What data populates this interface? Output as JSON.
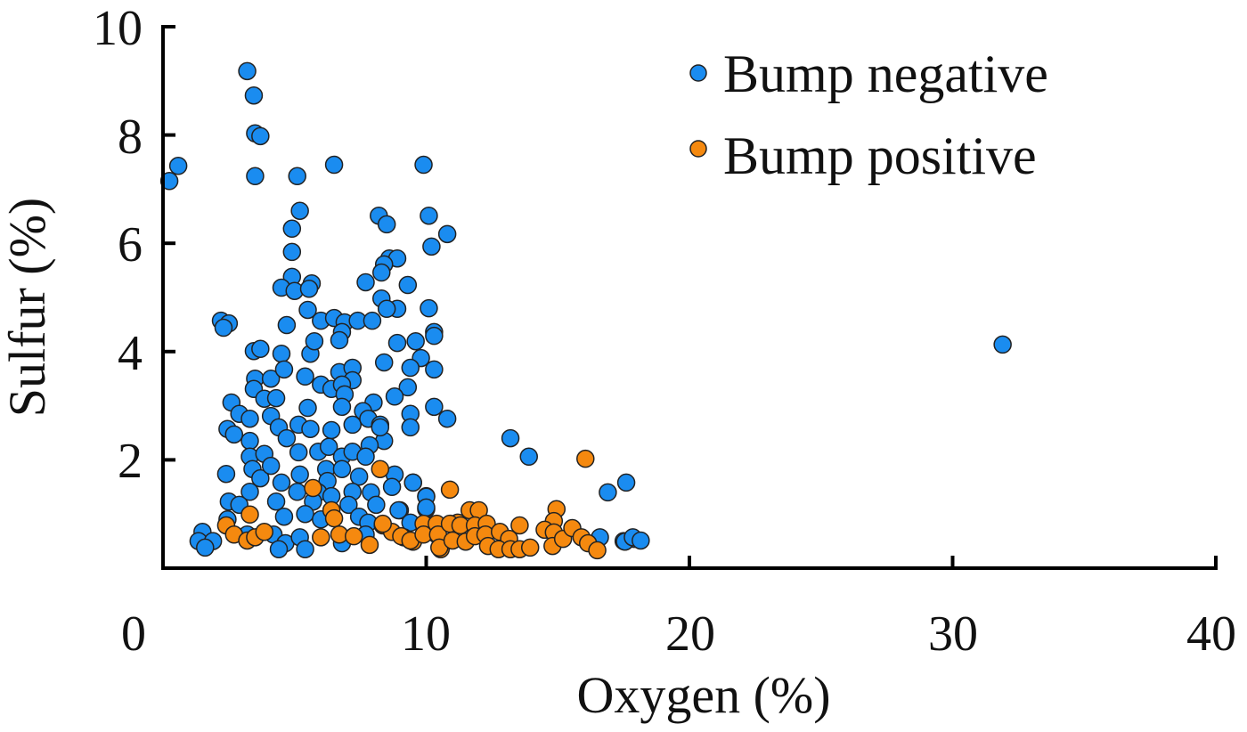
{
  "chart_data": {
    "type": "scatter",
    "xlabel": "Oxygen (%)",
    "ylabel": "Sulfur (%)",
    "xlim": [
      0,
      40
    ],
    "ylim": [
      0,
      10
    ],
    "xticks": [
      "0",
      "10",
      "20",
      "30",
      "40"
    ],
    "yticks": [
      "2",
      "4",
      "6",
      "8",
      "10"
    ],
    "grid": false,
    "legend_position": "top-right",
    "series": [
      {
        "name": "Bump negative",
        "color": "#1a8cf0",
        "points": [
          [
            0.24,
            7.15
          ],
          [
            0.58,
            7.43
          ],
          [
            3.2,
            9.18
          ],
          [
            3.45,
            8.73
          ],
          [
            3.5,
            8.03
          ],
          [
            3.7,
            7.98
          ],
          [
            3.5,
            7.24
          ],
          [
            5.1,
            7.24
          ],
          [
            6.5,
            7.45
          ],
          [
            9.9,
            7.45
          ],
          [
            5.2,
            6.6
          ],
          [
            4.9,
            6.27
          ],
          [
            4.9,
            5.84
          ],
          [
            8.2,
            6.51
          ],
          [
            8.5,
            6.35
          ],
          [
            10.1,
            6.51
          ],
          [
            10.8,
            6.17
          ],
          [
            10.2,
            5.94
          ],
          [
            31.9,
            4.13
          ],
          [
            13.2,
            2.4
          ],
          [
            13.9,
            2.06
          ],
          [
            16.9,
            1.4
          ],
          [
            17.6,
            1.58
          ],
          [
            17.5,
            0.5
          ],
          [
            17.9,
            0.54
          ],
          [
            8.6,
            5.72
          ],
          [
            8.9,
            5.72
          ],
          [
            8.4,
            5.61
          ],
          [
            8.3,
            5.46
          ],
          [
            7.7,
            5.28
          ],
          [
            9.3,
            5.23
          ],
          [
            4.9,
            5.38
          ],
          [
            4.5,
            5.18
          ],
          [
            5.0,
            5.12
          ],
          [
            5.65,
            5.26
          ],
          [
            5.55,
            5.16
          ],
          [
            5.5,
            4.77
          ],
          [
            6.0,
            4.57
          ],
          [
            6.5,
            4.62
          ],
          [
            6.9,
            4.54
          ],
          [
            7.4,
            4.57
          ],
          [
            7.95,
            4.57
          ],
          [
            8.3,
            4.98
          ],
          [
            8.9,
            4.79
          ],
          [
            8.5,
            4.79
          ],
          [
            10.1,
            4.8
          ],
          [
            2.2,
            4.57
          ],
          [
            2.5,
            4.52
          ],
          [
            2.3,
            4.44
          ],
          [
            4.7,
            4.49
          ],
          [
            10.3,
            4.36
          ],
          [
            6.8,
            4.36
          ],
          [
            3.45,
            4.01
          ],
          [
            3.7,
            4.05
          ],
          [
            4.5,
            3.96
          ],
          [
            5.6,
            3.96
          ],
          [
            5.75,
            4.19
          ],
          [
            6.7,
            4.21
          ],
          [
            8.4,
            3.8
          ],
          [
            8.9,
            4.16
          ],
          [
            9.6,
            4.19
          ],
          [
            10.3,
            4.29
          ],
          [
            9.8,
            3.88
          ],
          [
            9.4,
            3.7
          ],
          [
            10.3,
            3.67
          ],
          [
            3.5,
            3.5
          ],
          [
            4.1,
            3.5
          ],
          [
            4.6,
            3.67
          ],
          [
            3.45,
            3.31
          ],
          [
            5.4,
            3.54
          ],
          [
            6.0,
            3.39
          ],
          [
            6.4,
            3.31
          ],
          [
            6.7,
            3.62
          ],
          [
            7.2,
            3.7
          ],
          [
            7.2,
            3.47
          ],
          [
            6.8,
            3.39
          ],
          [
            9.3,
            3.34
          ],
          [
            8.8,
            3.17
          ],
          [
            2.6,
            3.06
          ],
          [
            2.9,
            2.85
          ],
          [
            3.3,
            2.76
          ],
          [
            3.85,
            3.13
          ],
          [
            4.3,
            3.14
          ],
          [
            4.1,
            2.81
          ],
          [
            5.5,
            2.96
          ],
          [
            6.9,
            3.21
          ],
          [
            6.8,
            2.98
          ],
          [
            8.0,
            3.06
          ],
          [
            7.6,
            2.9
          ],
          [
            9.4,
            2.85
          ],
          [
            9.4,
            2.6
          ],
          [
            10.3,
            2.98
          ],
          [
            10.8,
            2.76
          ],
          [
            2.45,
            2.57
          ],
          [
            2.7,
            2.47
          ],
          [
            3.3,
            2.35
          ],
          [
            4.4,
            2.6
          ],
          [
            4.7,
            2.4
          ],
          [
            5.15,
            2.65
          ],
          [
            5.6,
            2.57
          ],
          [
            6.4,
            2.55
          ],
          [
            7.2,
            2.65
          ],
          [
            7.8,
            2.76
          ],
          [
            8.25,
            2.65
          ],
          [
            8.4,
            2.35
          ],
          [
            7.85,
            2.27
          ],
          [
            8.25,
            2.6
          ],
          [
            3.3,
            2.06
          ],
          [
            3.85,
            2.11
          ],
          [
            5.15,
            2.14
          ],
          [
            5.9,
            2.15
          ],
          [
            6.3,
            2.24
          ],
          [
            6.8,
            2.06
          ],
          [
            7.2,
            2.15
          ],
          [
            7.7,
            2.06
          ],
          [
            2.4,
            1.74
          ],
          [
            3.4,
            1.83
          ],
          [
            3.7,
            1.66
          ],
          [
            4.1,
            1.89
          ],
          [
            4.5,
            1.58
          ],
          [
            5.2,
            1.73
          ],
          [
            6.2,
            1.83
          ],
          [
            6.25,
            1.61
          ],
          [
            6.8,
            1.83
          ],
          [
            7.45,
            1.69
          ],
          [
            8.8,
            1.73
          ],
          [
            9.5,
            1.58
          ],
          [
            8.7,
            1.5
          ],
          [
            3.3,
            1.41
          ],
          [
            5.1,
            1.41
          ],
          [
            5.9,
            1.4
          ],
          [
            6.4,
            1.33
          ],
          [
            7.2,
            1.41
          ],
          [
            7.9,
            1.4
          ],
          [
            10.0,
            1.33
          ],
          [
            2.5,
            1.23
          ],
          [
            2.9,
            1.17
          ],
          [
            4.3,
            1.23
          ],
          [
            5.7,
            1.23
          ],
          [
            7.05,
            1.17
          ],
          [
            8.1,
            1.17
          ],
          [
            9.0,
            1.07
          ],
          [
            10.0,
            1.09
          ],
          [
            10.0,
            1.32
          ],
          [
            10.0,
            1.12
          ],
          [
            8.95,
            1.07
          ],
          [
            9.5,
            1.58
          ],
          [
            2.45,
            0.9
          ],
          [
            4.6,
            0.95
          ],
          [
            5.4,
            1.0
          ],
          [
            6.0,
            0.9
          ],
          [
            7.45,
            0.95
          ],
          [
            7.8,
            0.84
          ],
          [
            9.4,
            0.84
          ],
          [
            1.5,
            0.67
          ],
          [
            1.35,
            0.5
          ],
          [
            1.9,
            0.5
          ],
          [
            1.6,
            0.38
          ],
          [
            3.2,
            0.62
          ],
          [
            4.2,
            0.62
          ],
          [
            4.65,
            0.46
          ],
          [
            4.4,
            0.35
          ],
          [
            5.2,
            0.57
          ],
          [
            5.4,
            0.35
          ],
          [
            7.7,
            0.62
          ],
          [
            6.8,
            0.46
          ],
          [
            16.6,
            0.57
          ],
          [
            17.55,
            0.49
          ],
          [
            17.85,
            0.57
          ],
          [
            18.15,
            0.51
          ]
        ]
      },
      {
        "name": "Bump positive",
        "color": "#f5890f",
        "points": [
          [
            16.05,
            2.02
          ],
          [
            8.25,
            1.83
          ],
          [
            5.7,
            1.48
          ],
          [
            10.9,
            1.45
          ],
          [
            3.3,
            0.99
          ],
          [
            6.4,
            1.07
          ],
          [
            6.5,
            0.92
          ],
          [
            2.4,
            0.79
          ],
          [
            2.7,
            0.62
          ],
          [
            3.2,
            0.51
          ],
          [
            3.5,
            0.57
          ],
          [
            3.85,
            0.67
          ],
          [
            6.0,
            0.57
          ],
          [
            6.7,
            0.62
          ],
          [
            7.25,
            0.59
          ],
          [
            7.85,
            0.43
          ],
          [
            8.35,
            0.79
          ],
          [
            8.7,
            0.67
          ],
          [
            9.15,
            0.57
          ],
          [
            9.5,
            0.49
          ],
          [
            9.95,
            0.79
          ],
          [
            10.4,
            0.62
          ],
          [
            10.55,
            0.35
          ],
          [
            11.2,
            0.84
          ],
          [
            11.65,
            1.07
          ],
          [
            12.0,
            1.07
          ],
          [
            14.95,
            1.09
          ],
          [
            14.85,
            0.87
          ],
          [
            8.35,
            0.82
          ],
          [
            9.05,
            0.59
          ],
          [
            9.4,
            0.51
          ],
          [
            9.9,
            0.82
          ],
          [
            9.9,
            0.62
          ],
          [
            10.4,
            0.82
          ],
          [
            10.45,
            0.62
          ],
          [
            10.5,
            0.38
          ],
          [
            10.9,
            0.82
          ],
          [
            11.0,
            0.51
          ],
          [
            11.3,
            0.79
          ],
          [
            11.5,
            0.49
          ],
          [
            11.85,
            0.79
          ],
          [
            11.85,
            0.59
          ],
          [
            12.3,
            0.82
          ],
          [
            12.25,
            0.62
          ],
          [
            12.35,
            0.41
          ],
          [
            12.8,
            0.67
          ],
          [
            13.15,
            0.54
          ],
          [
            13.55,
            0.79
          ],
          [
            12.75,
            0.35
          ],
          [
            13.2,
            0.35
          ],
          [
            13.55,
            0.35
          ],
          [
            13.95,
            0.38
          ],
          [
            14.5,
            0.71
          ],
          [
            14.85,
            0.66
          ],
          [
            14.8,
            0.41
          ],
          [
            15.2,
            0.54
          ],
          [
            15.55,
            0.74
          ],
          [
            15.9,
            0.57
          ],
          [
            16.15,
            0.46
          ],
          [
            16.5,
            0.33
          ]
        ]
      }
    ]
  }
}
